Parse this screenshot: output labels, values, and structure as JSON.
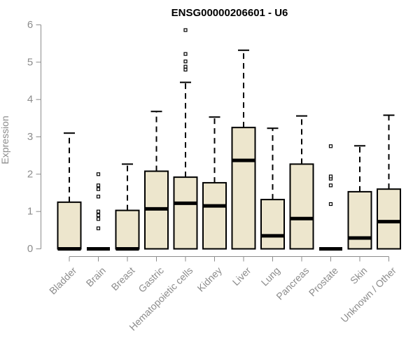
{
  "chart_data": {
    "type": "boxplot",
    "title": "ENSG00000206601 - U6",
    "ylabel": "Expression",
    "xlabel": "",
    "ylim": [
      0,
      6
    ],
    "yticks": [
      "0",
      "1",
      "2",
      "3",
      "4",
      "5",
      "6"
    ],
    "grid": false,
    "legend": "none",
    "box_fill": "#ede6cd",
    "box_stroke": "#000000",
    "axis_color": "#8c8c8c",
    "categories": [
      "Bladder",
      "Brain",
      "Breast",
      "Gastric",
      "Hematopoietic cells",
      "Kidney",
      "Liver",
      "Lung",
      "Pancreas",
      "Prostate",
      "Skin",
      "Unknown / Other"
    ],
    "boxes": [
      {
        "whisker_low": 0,
        "q1": 0,
        "median": 0,
        "q3": 1.25,
        "whisker_high": 3.1,
        "outliers": []
      },
      {
        "whisker_low": 0,
        "q1": 0,
        "median": 0,
        "q3": 0,
        "whisker_high": 0,
        "outliers": [
          0.55,
          0.8,
          0.9,
          1.0,
          1.4,
          1.6,
          1.7,
          2.0
        ]
      },
      {
        "whisker_low": 0,
        "q1": 0,
        "median": 0,
        "q3": 1.03,
        "whisker_high": 2.27,
        "outliers": []
      },
      {
        "whisker_low": 0,
        "q1": 0,
        "median": 1.07,
        "q3": 2.08,
        "whisker_high": 3.68,
        "outliers": []
      },
      {
        "whisker_low": 0,
        "q1": 0,
        "median": 1.22,
        "q3": 1.92,
        "whisker_high": 4.46,
        "outliers": [
          4.8,
          4.88,
          5.02,
          5.22,
          5.86
        ]
      },
      {
        "whisker_low": 0,
        "q1": 0,
        "median": 1.15,
        "q3": 1.77,
        "whisker_high": 3.53,
        "outliers": []
      },
      {
        "whisker_low": 0,
        "q1": 0,
        "median": 2.37,
        "q3": 3.25,
        "whisker_high": 5.32,
        "outliers": []
      },
      {
        "whisker_low": 0,
        "q1": 0,
        "median": 0.35,
        "q3": 1.32,
        "whisker_high": 3.23,
        "outliers": []
      },
      {
        "whisker_low": 0,
        "q1": 0,
        "median": 0.81,
        "q3": 2.27,
        "whisker_high": 3.56,
        "outliers": []
      },
      {
        "whisker_low": 0,
        "q1": 0,
        "median": 0,
        "q3": 0,
        "whisker_high": 0,
        "outliers": [
          1.2,
          1.7,
          1.88,
          1.94,
          2.75
        ]
      },
      {
        "whisker_low": 0,
        "q1": 0,
        "median": 0.29,
        "q3": 1.53,
        "whisker_high": 2.76,
        "outliers": []
      },
      {
        "whisker_low": 0,
        "q1": 0,
        "median": 0.73,
        "q3": 1.6,
        "whisker_high": 3.58,
        "outliers": []
      }
    ]
  }
}
